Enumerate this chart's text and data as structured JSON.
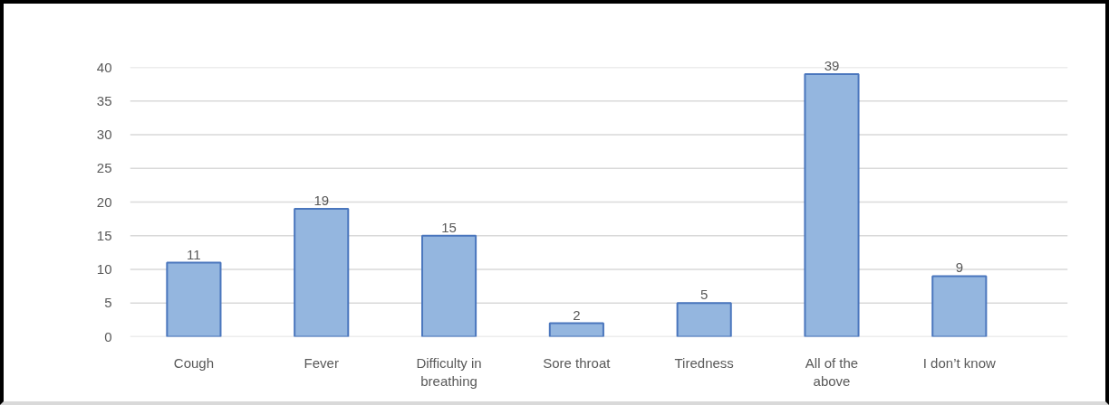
{
  "chart_data": {
    "type": "bar",
    "categories": [
      "Cough",
      "Fever",
      "Difficulty in breathing",
      "Sore throat",
      "Tiredness",
      "All of the above",
      "I don’t know"
    ],
    "values": [
      11,
      19,
      15,
      2,
      5,
      39,
      9
    ],
    "color": "#94b6df",
    "ylim": [
      0,
      40
    ],
    "yticks": [
      0,
      5,
      10,
      15,
      20,
      25,
      30,
      35,
      40
    ],
    "grid": "y",
    "data_labels": true
  }
}
